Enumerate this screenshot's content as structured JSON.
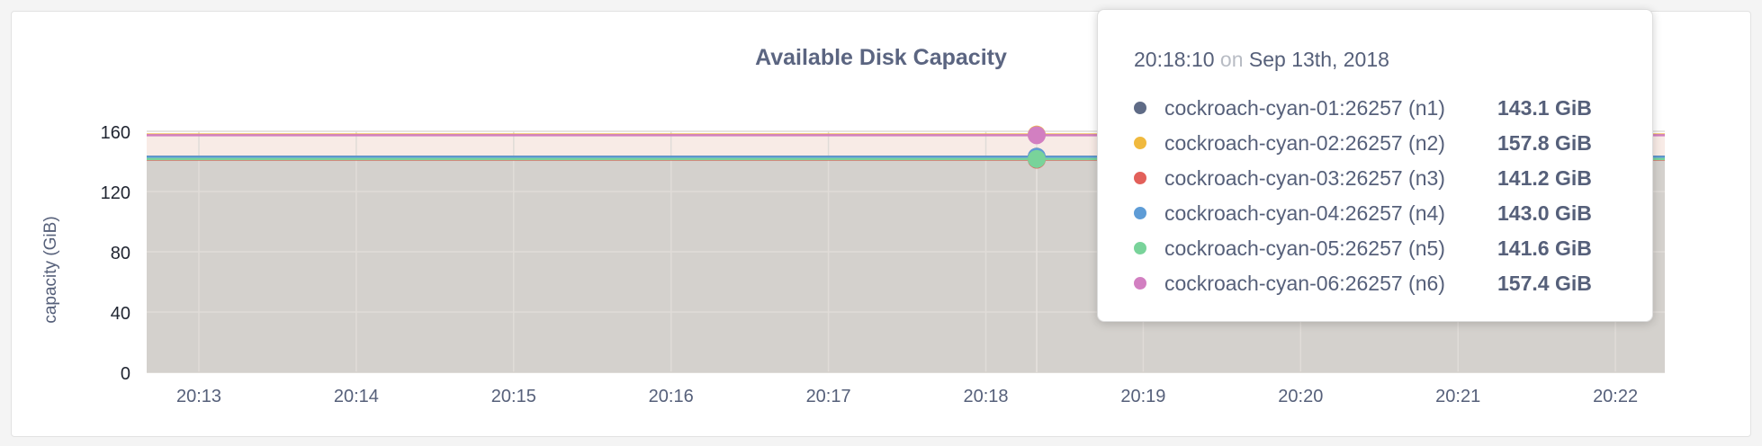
{
  "chart_data": {
    "type": "area",
    "title": "Available Disk Capacity",
    "ylabel": "capacity (GiB)",
    "xlabel": "",
    "ylim": [
      0,
      170
    ],
    "yticks": [
      "0",
      "40",
      "80",
      "120",
      "160"
    ],
    "ytick_values": [
      0,
      40,
      80,
      120,
      160
    ],
    "xticks": [
      "20:13",
      "20:14",
      "20:15",
      "20:16",
      "20:17",
      "20:18",
      "20:19",
      "20:20",
      "20:21",
      "20:22"
    ],
    "xlim_minutes_label": [
      "20:12:40",
      "20:22:40"
    ],
    "grid": true,
    "hover_time": "20:18:10",
    "series": [
      {
        "name": "cockroach-cyan-01:26257 (n1)",
        "color": "#5f6b86",
        "value": 143.1
      },
      {
        "name": "cockroach-cyan-02:26257 (n2)",
        "color": "#f0b93e",
        "value": 157.8
      },
      {
        "name": "cockroach-cyan-03:26257 (n3)",
        "color": "#e2605a",
        "value": 141.2
      },
      {
        "name": "cockroach-cyan-04:26257 (n4)",
        "color": "#5e9cd6",
        "value": 143.0
      },
      {
        "name": "cockroach-cyan-05:26257 (n5)",
        "color": "#79d39a",
        "value": 141.6
      },
      {
        "name": "cockroach-cyan-06:26257 (n6)",
        "color": "#d27fc1",
        "value": 157.4
      }
    ]
  },
  "tooltip": {
    "time": "20:18:10",
    "on": "on",
    "date": "Sep 13th, 2018",
    "rows": [
      {
        "name": "cockroach-cyan-01:26257 (n1)",
        "value": "143.1 GiB"
      },
      {
        "name": "cockroach-cyan-02:26257 (n2)",
        "value": "157.8 GiB"
      },
      {
        "name": "cockroach-cyan-03:26257 (n3)",
        "value": "141.2 GiB"
      },
      {
        "name": "cockroach-cyan-04:26257 (n4)",
        "value": "143.0 GiB"
      },
      {
        "name": "cockroach-cyan-05:26257 (n5)",
        "value": "141.6 GiB"
      },
      {
        "name": "cockroach-cyan-06:26257 (n6)",
        "value": "157.4 GiB"
      }
    ]
  }
}
